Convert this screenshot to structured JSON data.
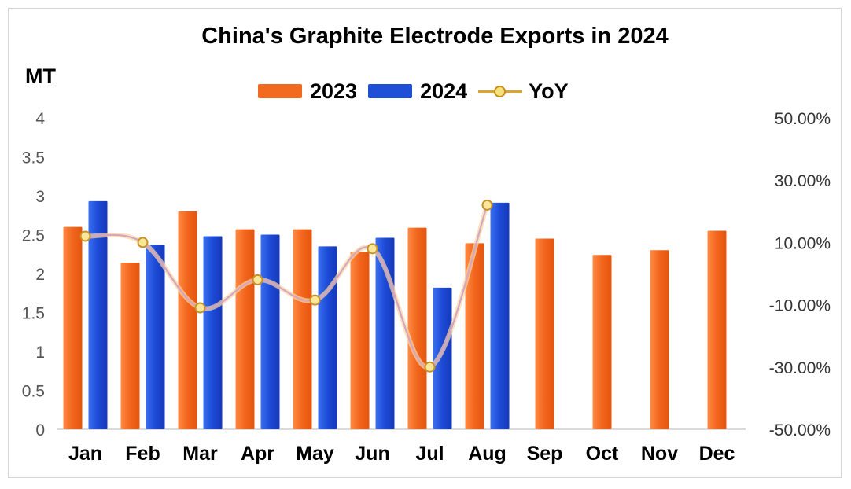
{
  "chart_data": {
    "type": "bar",
    "title": "China's Graphite Electrode Exports in 2024",
    "ylabel": "MT",
    "categories": [
      "Jan",
      "Feb",
      "Mar",
      "Apr",
      "May",
      "Jun",
      "Jul",
      "Aug",
      "Sep",
      "Oct",
      "Nov",
      "Dec"
    ],
    "series": [
      {
        "name": "2023",
        "type": "bar",
        "color": "#f26a1f",
        "values": [
          2.6,
          2.14,
          2.8,
          2.57,
          2.57,
          2.28,
          2.59,
          2.39,
          2.45,
          2.24,
          2.3,
          2.55
        ]
      },
      {
        "name": "2024",
        "type": "bar",
        "color": "#1f4fd6",
        "values": [
          2.93,
          2.37,
          2.48,
          2.5,
          2.35,
          2.46,
          1.82,
          2.91,
          null,
          null,
          null,
          null
        ]
      },
      {
        "name": "YoY",
        "type": "line",
        "axis": "right",
        "color": "#d9a633",
        "values": [
          12.0,
          10.0,
          -11.0,
          -2.0,
          -8.5,
          8.0,
          -30.0,
          22.0,
          null,
          null,
          null,
          null
        ]
      }
    ],
    "ylim": [
      0,
      4
    ],
    "yticks": [
      "0",
      "0.5",
      "1",
      "1.5",
      "2",
      "2.5",
      "3",
      "3.5",
      "4"
    ],
    "y2lim": [
      -50,
      50
    ],
    "y2ticks": [
      "-50.00%",
      "-30.00%",
      "-10.00%",
      "10.00%",
      "30.00%",
      "50.00%"
    ],
    "legend": "top-center",
    "grid": false
  }
}
